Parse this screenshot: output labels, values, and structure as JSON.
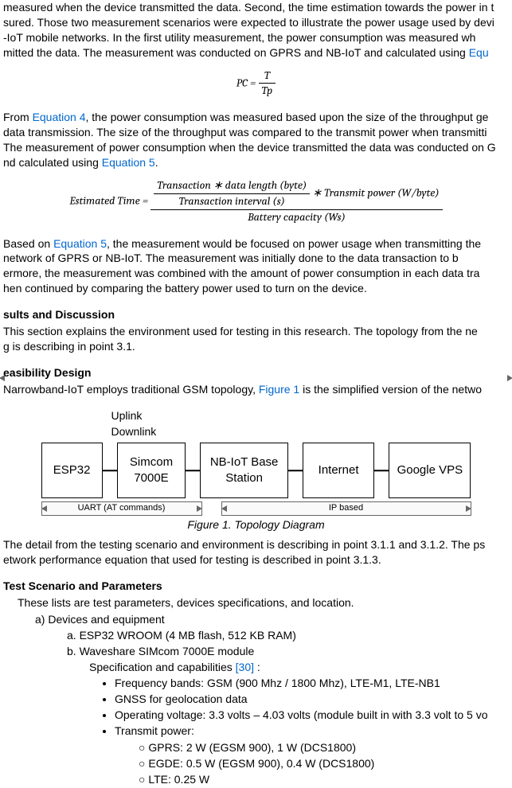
{
  "paragraphs": {
    "p1a": "measured when the device transmitted the data. Second, the time estimation towards the power in t",
    "p1b": "sured. Those two measurement scenarios were expected to illustrate the power usage used by devi",
    "p1c": "-IoT mobile networks. In the first utility measurement, the power consumption was measured wh",
    "p1d": "mitted the data. The measurement was conducted on GPRS and NB-IoT and calculated using ",
    "link_eq3": "Equ",
    "p2a": "From ",
    "link_eq4": "Equation 4",
    "p2b": ", the power consumption was measured based upon the size of the throughput ge",
    "p2c": " data transmission. The size of the throughput was compared to the transmit power when transmitti",
    "p2d": "The measurement of power consumption when the device transmitted the data was conducted on G",
    "p2e": "nd calculated using ",
    "link_eq5": "Equation 5",
    "p2f": ".",
    "p3a": "Based on ",
    "link_eq5b": "Equation 5",
    "p3b": ", the measurement would be focused on power usage when transmitting the ",
    "p3c": "network of GPRS or NB-IoT. The measurement was initially done to the data transaction to b",
    "p3d": "ermore, the measurement was combined with the amount of power consumption in each data tra",
    "p3e": "hen continued by comparing the battery power used to turn on the device."
  },
  "equations": {
    "eq1": {
      "lhs": "PC =",
      "num": "T",
      "den": "Tp"
    },
    "eq2": {
      "lhs": "Estimated Time =",
      "inner_num": "Transaction ∗ data length (byte)",
      "inner_den": "Transaction interval (s)",
      "mult": " ∗ Transmit power (W/byte)",
      "outer_den": "Battery capacity (Ws)"
    }
  },
  "headings": {
    "results": "sults and Discussion",
    "results_p1": "This section explains the environment used for testing in this research. The topology from the ne",
    "results_p2": "g is describing in point 3.1.",
    "feas": "easibility Design",
    "feas_p": "Narrowband-IoT employs traditional GSM topology, ",
    "link_fig1": "Figure 1",
    "feas_p2": " is the simplified version of the netwo",
    "test": " Test Scenario and Parameters",
    "test_p": "These lists are test parameters, devices specifications, and location."
  },
  "figure": {
    "uplink": "Uplink",
    "downlink": "Downlink",
    "nodes": [
      "ESP32",
      "Simcom 7000E",
      "NB-IoT Base Station",
      "Internet",
      "Google VPS"
    ],
    "node_widths": [
      82,
      92,
      118,
      96,
      110
    ],
    "uart": "UART (AT commands)",
    "ip": "IP based",
    "caption": "Figure 1. Topology Diagram",
    "border_color": "#000000",
    "arrow_color": "#666666"
  },
  "after_fig": "The detail from the testing scenario and environment is describing in point 3.1.1 and 3.1.2. The ps",
  "after_fig2": "etwork performance equation that used for testing is described in point 3.1.3.",
  "list": {
    "a_label": "a)   Devices and equipment",
    "items": {
      "a": "a.    ESP32 WROOM (4 MB flash, 512 KB RAM)",
      "b": "b.    Waveshare SIMcom 7000E module",
      "spec": "Specification and capabilities ",
      "ref30": "[30]",
      "spec_colon": " :",
      "bullets": [
        "Frequency bands: GSM (900 Mhz / 1800 Mhz), LTE-M1, LTE-NB1",
        "GNSS for geolocation data",
        "Operating voltage: 3.3 volts – 4.03 volts (module built in with 3.3 volt to 5 vo",
        "Transmit power:"
      ],
      "tx": [
        "GPRS: 2 W (EGSM 900), 1 W (DCS1800)",
        "EGDE: 0.5 W (EGSM 900), 0.4 W (DCS1800)",
        "LTE: 0.25 W"
      ]
    }
  }
}
